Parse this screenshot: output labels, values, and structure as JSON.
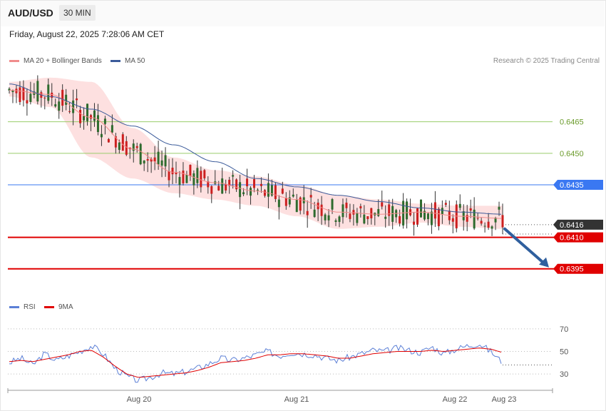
{
  "header": {
    "symbol": "AUD/USD",
    "timeframe": "30 MIN"
  },
  "datetime": "Friday, August 22, 2025 7:28:06 AM CET",
  "legend": {
    "ma20": {
      "label": "MA 20 + Bollinger Bands",
      "color": "#f08c8c"
    },
    "ma50": {
      "label": "MA 50",
      "color": "#3b5b9a"
    },
    "rsi": {
      "label": "RSI",
      "color": "#5b7fd6"
    },
    "rsi9": {
      "label": "9MA",
      "color": "#e00000"
    }
  },
  "credit": "Research © 2025 Trading Central",
  "chart_data": {
    "type": "candlestick",
    "instrument": "AUD/USD",
    "interval": "30 MIN",
    "x_ticks": [
      "Aug 20",
      "Aug 21",
      "Aug 22",
      "Aug 23"
    ],
    "price_range": [
      0.6382,
      0.6489
    ],
    "levels": [
      {
        "label": "0.6465",
        "value": 0.6465,
        "kind": "resistance-minor",
        "color": "#9acd6a"
      },
      {
        "label": "0.6450",
        "value": 0.645,
        "kind": "resistance-minor",
        "color": "#9acd6a"
      },
      {
        "label": "0.6435",
        "value": 0.6435,
        "kind": "pivot",
        "color": "#3a78f2"
      },
      {
        "label": "0.6416",
        "value": 0.6416,
        "kind": "last-price",
        "color": "#333333"
      },
      {
        "label": "0.6410",
        "value": 0.641,
        "kind": "support",
        "color": "#e00000"
      },
      {
        "label": "0.6395",
        "value": 0.6395,
        "kind": "support",
        "color": "#e00000"
      }
    ],
    "ma50_path": [
      0.6483,
      0.6477,
      0.6471,
      0.6463,
      0.6454,
      0.6446,
      0.6438,
      0.6434,
      0.643,
      0.6427,
      0.6424,
      0.6422,
      0.6421
    ],
    "ma20_path": [
      0.648,
      0.6478,
      0.6467,
      0.6452,
      0.6441,
      0.6436,
      0.6432,
      0.6428,
      0.6422,
      0.6421,
      0.6422,
      0.642,
      0.6419
    ],
    "bollinger_upper": [
      0.6484,
      0.6486,
      0.6484,
      0.6462,
      0.6448,
      0.6442,
      0.6439,
      0.6435,
      0.643,
      0.6428,
      0.6426,
      0.6425,
      0.6425
    ],
    "bollinger_lower": [
      0.6477,
      0.6472,
      0.6448,
      0.6438,
      0.6431,
      0.6428,
      0.6425,
      0.642,
      0.6414,
      0.6415,
      0.6417,
      0.6415,
      0.6414
    ],
    "forecast": {
      "from": 0.6414,
      "to": 0.6395
    },
    "rsi": {
      "ticks": [
        "70",
        "50",
        "30"
      ],
      "range": [
        20,
        80
      ],
      "rsi_path": [
        40,
        44,
        38,
        48,
        42,
        46,
        50,
        55,
        48,
        35,
        28,
        24,
        27,
        31,
        30,
        32,
        35,
        39,
        44,
        42,
        44,
        47,
        50,
        46,
        49,
        48,
        47,
        44,
        42,
        45,
        48,
        51,
        50,
        53,
        51,
        49,
        54,
        48,
        52,
        55,
        57,
        50,
        40
      ],
      "ma9_path": [
        41,
        42,
        41,
        43,
        45,
        47,
        50,
        51,
        45,
        37,
        30,
        27,
        28,
        29,
        30,
        31,
        33,
        36,
        40,
        41,
        42,
        44,
        47,
        47,
        48,
        48,
        47,
        46,
        44,
        44,
        46,
        48,
        49,
        50,
        50,
        50,
        51,
        50,
        51,
        52,
        53,
        52,
        49
      ]
    }
  }
}
